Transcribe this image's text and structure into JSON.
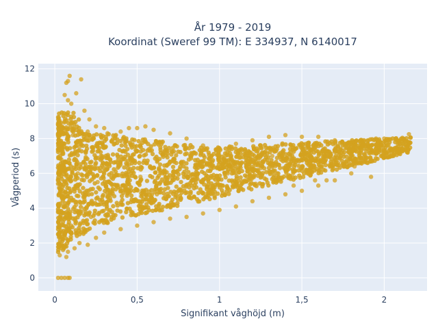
{
  "chart_data": {
    "type": "scatter",
    "title": "År 1979 - 2019",
    "subtitle": "Koordinat (Sweref 99 TM): E 334937, N 6140017",
    "xlabel": "Signifikant våghöjd (m)",
    "ylabel": "Vågperiod (s)",
    "xlim": [
      -0.1,
      2.26
    ],
    "ylim": [
      -0.75,
      12.3
    ],
    "x_ticks": [
      0,
      0.5,
      1,
      1.5,
      2
    ],
    "x_tick_labels": [
      "0",
      "0,5",
      "1",
      "1,5",
      "2"
    ],
    "y_ticks": [
      0,
      2,
      4,
      6,
      8,
      10,
      12
    ],
    "y_tick_labels": [
      "0",
      "2",
      "4",
      "6",
      "8",
      "10",
      "12"
    ],
    "grid": true,
    "legend": "none",
    "colors": {
      "marker": "#d4a21f",
      "plot_background": "#e5ecf6",
      "grid": "#ffffff"
    },
    "series": [
      {
        "points": [
          [
            0.02,
            0.0
          ],
          [
            0.04,
            0.0
          ],
          [
            0.06,
            0.0
          ],
          [
            0.08,
            0.0
          ],
          [
            0.09,
            0.0
          ],
          [
            0.03,
            1.3
          ],
          [
            0.05,
            1.6
          ],
          [
            0.07,
            1.2
          ],
          [
            0.04,
            2.5
          ],
          [
            0.03,
            3.5
          ],
          [
            0.05,
            5.0
          ],
          [
            0.04,
            6.8
          ],
          [
            0.05,
            7.2
          ],
          [
            0.06,
            9.0
          ],
          [
            0.07,
            9.4
          ],
          [
            0.06,
            10.5
          ],
          [
            0.08,
            11.3
          ],
          [
            0.07,
            11.2
          ],
          [
            0.09,
            11.6
          ],
          [
            0.16,
            11.4
          ],
          [
            0.08,
            10.2
          ],
          [
            0.1,
            10.0
          ],
          [
            0.13,
            10.6
          ],
          [
            0.18,
            9.6
          ],
          [
            0.21,
            9.1
          ],
          [
            0.1,
            8.9
          ],
          [
            0.11,
            8.2
          ],
          [
            0.08,
            1.5
          ],
          [
            0.12,
            1.7
          ],
          [
            0.15,
            2.0
          ],
          [
            0.1,
            3.0
          ],
          [
            0.13,
            4.2
          ],
          [
            0.14,
            6.0
          ],
          [
            0.15,
            7.5
          ],
          [
            0.2,
            8.4
          ],
          [
            0.25,
            8.7
          ],
          [
            0.3,
            8.6
          ],
          [
            0.32,
            8.3
          ],
          [
            0.4,
            8.4
          ],
          [
            0.45,
            8.6
          ],
          [
            0.5,
            8.6
          ],
          [
            0.55,
            8.7
          ],
          [
            0.6,
            8.5
          ],
          [
            0.7,
            8.3
          ],
          [
            0.8,
            8.0
          ],
          [
            0.9,
            7.6
          ],
          [
            1.0,
            7.4
          ],
          [
            1.1,
            7.7
          ],
          [
            1.2,
            7.9
          ],
          [
            1.3,
            8.1
          ],
          [
            1.4,
            8.2
          ],
          [
            1.5,
            8.1
          ],
          [
            1.6,
            8.1
          ],
          [
            1.7,
            7.9
          ],
          [
            1.8,
            7.8
          ],
          [
            1.9,
            7.9
          ],
          [
            1.95,
            8.0
          ],
          [
            2.0,
            8.0
          ],
          [
            2.15,
            8.25
          ],
          [
            2.16,
            8.05
          ],
          [
            0.2,
            1.9
          ],
          [
            0.25,
            2.3
          ],
          [
            0.3,
            2.6
          ],
          [
            0.4,
            2.8
          ],
          [
            0.5,
            3.0
          ],
          [
            0.6,
            3.2
          ],
          [
            0.7,
            3.4
          ],
          [
            0.8,
            3.5
          ],
          [
            0.9,
            3.7
          ],
          [
            1.0,
            3.9
          ],
          [
            1.1,
            4.1
          ],
          [
            1.2,
            4.4
          ],
          [
            1.3,
            4.6
          ],
          [
            1.4,
            4.8
          ],
          [
            1.5,
            5.0
          ],
          [
            1.6,
            5.3
          ],
          [
            1.7,
            5.6
          ],
          [
            1.8,
            6.0
          ],
          [
            1.9,
            6.6
          ],
          [
            2.0,
            7.2
          ],
          [
            1.58,
            5.6
          ],
          [
            1.65,
            5.6
          ],
          [
            1.82,
            6.4
          ],
          [
            1.92,
            5.8
          ],
          [
            1.45,
            5.3
          ],
          [
            0.35,
            5.0
          ],
          [
            0.45,
            6.5
          ],
          [
            0.55,
            4.5
          ],
          [
            0.65,
            6.0
          ],
          [
            0.75,
            5.0
          ],
          [
            0.85,
            5.8
          ],
          [
            0.95,
            5.0
          ],
          [
            1.05,
            6.0
          ],
          [
            1.15,
            5.5
          ],
          [
            1.25,
            6.3
          ],
          [
            1.35,
            6.0
          ],
          [
            1.45,
            6.6
          ],
          [
            1.55,
            6.5
          ],
          [
            1.65,
            7.0
          ],
          [
            1.75,
            7.1
          ],
          [
            0.22,
            3.5
          ],
          [
            0.28,
            7.0
          ],
          [
            0.18,
            4.5
          ],
          [
            0.26,
            5.5
          ],
          [
            0.33,
            3.8
          ],
          [
            0.42,
            7.3
          ],
          [
            0.52,
            5.8
          ],
          [
            0.62,
            4.8
          ],
          [
            0.72,
            6.8
          ],
          [
            0.82,
            4.6
          ],
          [
            0.92,
            6.5
          ],
          [
            1.02,
            5.3
          ],
          [
            1.12,
            6.9
          ],
          [
            1.22,
            5.4
          ],
          [
            1.32,
            7.0
          ],
          [
            1.42,
            5.9
          ],
          [
            1.52,
            7.2
          ],
          [
            1.62,
            6.4
          ],
          [
            1.72,
            6.6
          ],
          [
            1.85,
            7.3
          ]
        ]
      }
    ]
  }
}
